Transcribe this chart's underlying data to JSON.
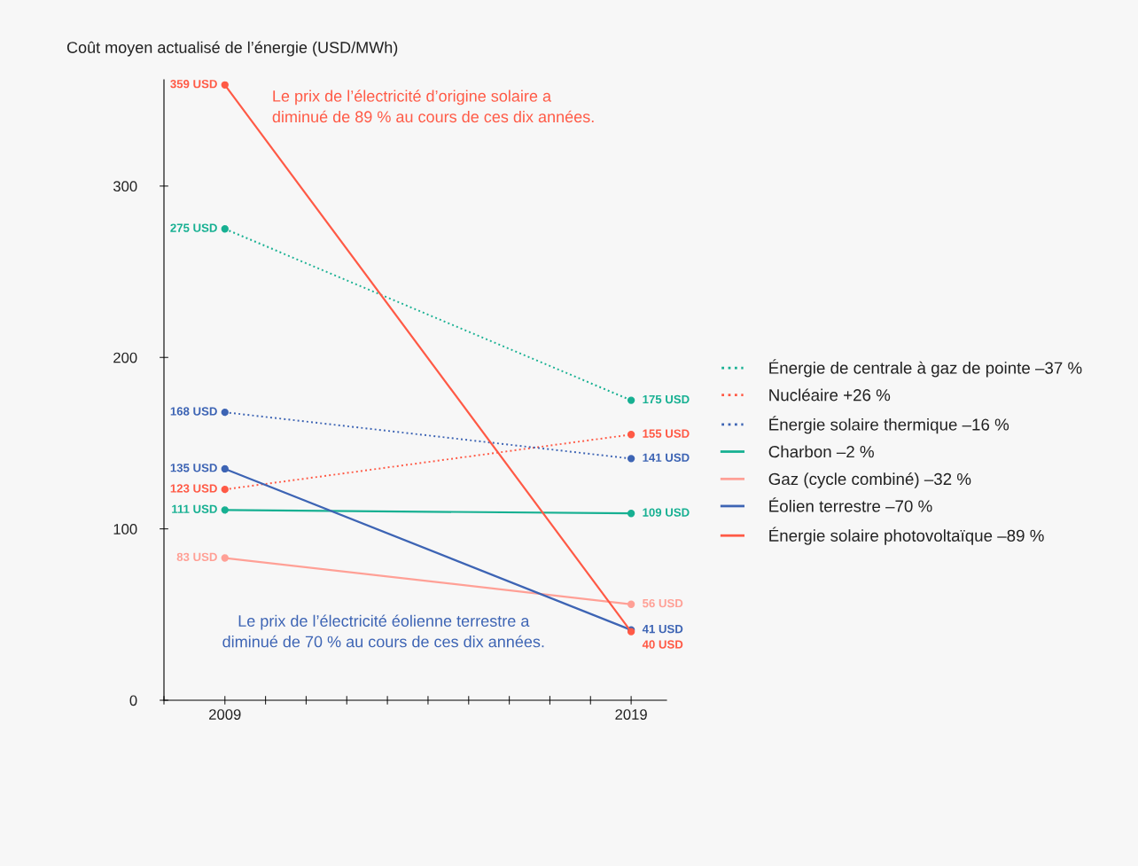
{
  "chart_data": {
    "type": "line",
    "ylabel": "Coût moyen actualisé de l’énergie (USD/MWh)",
    "x": [
      2009,
      2019
    ],
    "xlim": [
      2007.5,
      2019.87
    ],
    "xticks": [
      {
        "value": 2007.5,
        "label": null
      },
      2009,
      {
        "value": 2010,
        "label": null
      },
      {
        "value": 2011,
        "label": null
      },
      {
        "value": 2012,
        "label": null
      },
      {
        "value": 2013,
        "label": null
      },
      {
        "value": 2014,
        "label": null
      },
      {
        "value": 2015,
        "label": null
      },
      {
        "value": 2016,
        "label": null
      },
      {
        "value": 2017,
        "label": null
      },
      {
        "value": 2018,
        "label": null
      },
      2019
    ],
    "ylim": [
      0,
      362
    ],
    "yticks": [
      0,
      100,
      200,
      300
    ],
    "grid": false,
    "legend": "right",
    "marker": "circle",
    "series": [
      {
        "name": "Énergie de centrale à gaz de pointe –37 %",
        "color": "#17b092",
        "line_style": "dotted",
        "values": [
          275,
          175
        ],
        "value_labels": [
          "275 USD",
          "175 USD"
        ]
      },
      {
        "name": "Nucléaire +26 %",
        "color": "#ff5a46",
        "line_style": "dotted",
        "values": [
          123,
          155
        ],
        "value_labels": [
          "123 USD",
          "155 USD"
        ]
      },
      {
        "name": "Énergie solaire thermique –16 %",
        "color": "#3d64b4",
        "line_style": "dotted",
        "values": [
          168,
          141
        ],
        "value_labels": [
          "168 USD",
          "141 USD"
        ]
      },
      {
        "name": "Charbon –2 %",
        "color": "#17b092",
        "line_style": "solid",
        "values": [
          111,
          109
        ],
        "value_labels": [
          "111 USD",
          "109 USD"
        ]
      },
      {
        "name": "Gaz (cycle combiné) –32 %",
        "color": "#ffa096",
        "line_style": "solid",
        "values": [
          83,
          56
        ],
        "value_labels": [
          "83 USD",
          "56 USD"
        ]
      },
      {
        "name": "Éolien terrestre –70 %",
        "color": "#3d64b4",
        "line_style": "solid",
        "values": [
          135,
          41
        ],
        "value_labels": [
          "135 USD",
          "41 USD"
        ]
      },
      {
        "name": "Énergie solaire photovoltaïque –89 %",
        "color": "#ff5a46",
        "line_style": "solid",
        "values": [
          359,
          40
        ],
        "value_labels": [
          "359 USD",
          "40 USD"
        ]
      }
    ],
    "annotations": [
      "Le prix de l’électricité d’origine solaire a\ndiminué de 89 % au cours de ces dix années.",
      "Le prix de l’électricité éolienne terrestre a\ndiminué de 70 % au cours de ces dix années."
    ]
  }
}
